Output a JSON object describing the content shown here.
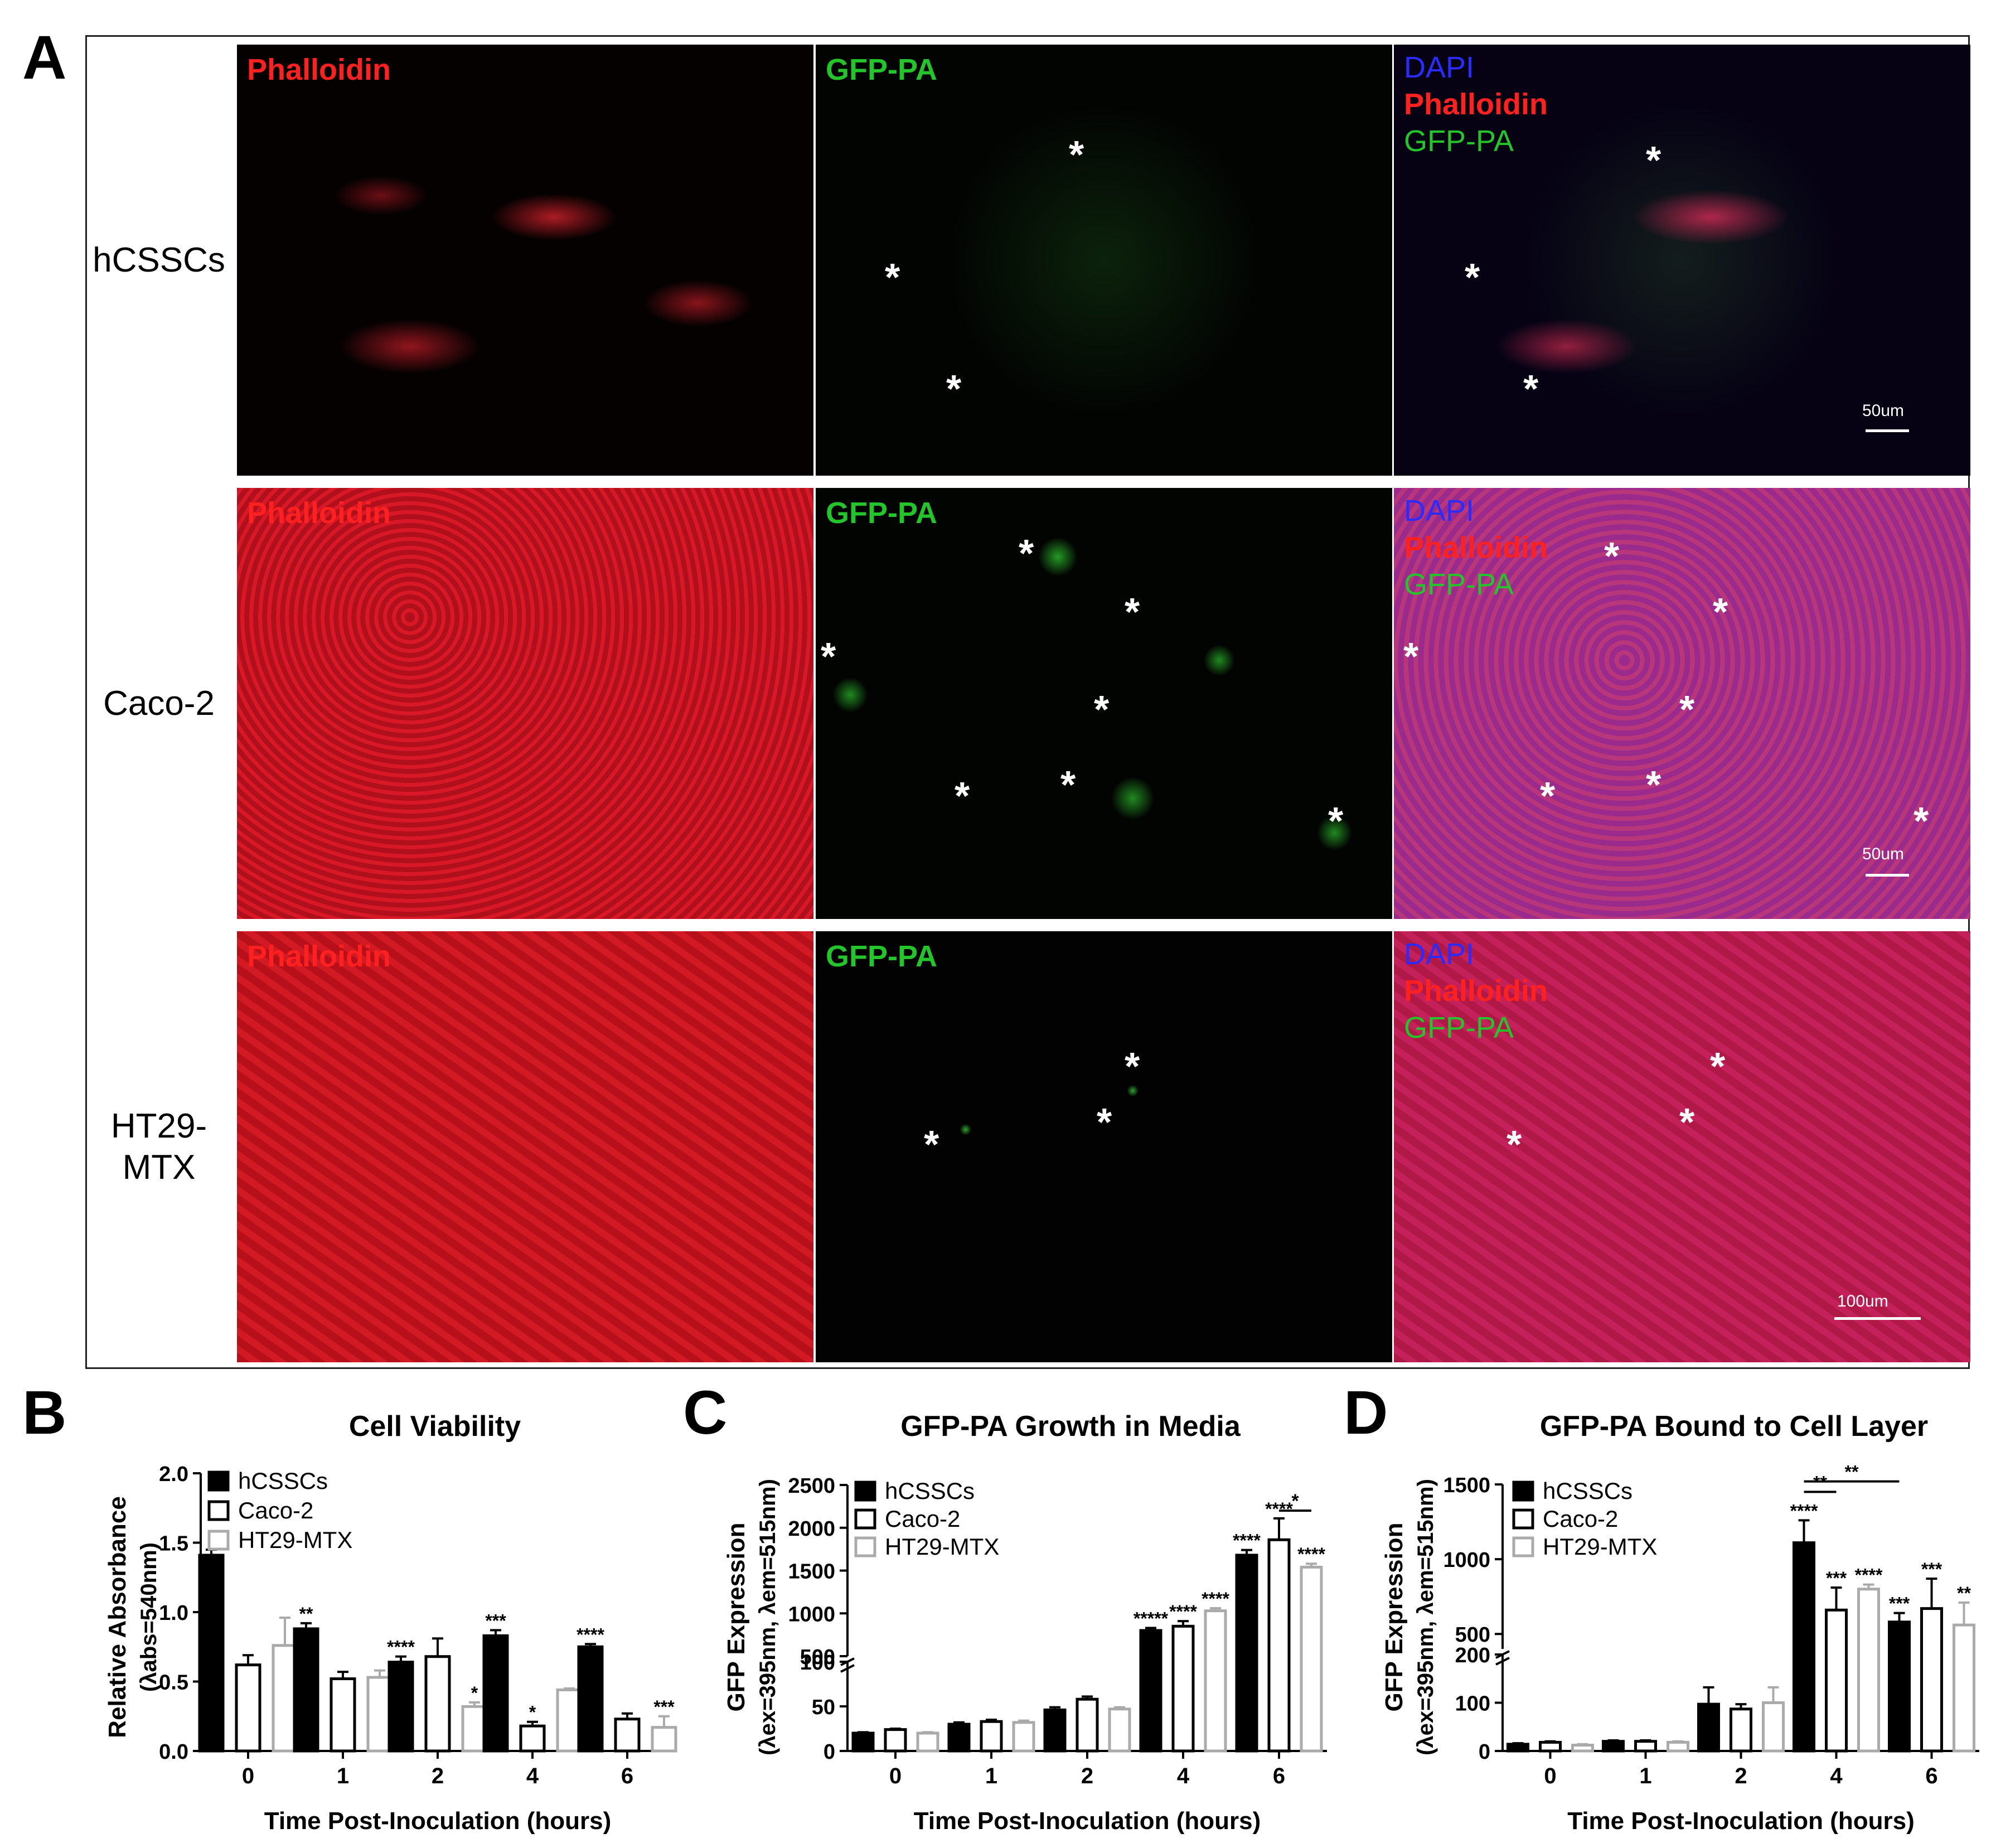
{
  "figure": {
    "panel_letters": {
      "a": "A",
      "b": "B",
      "c": "C",
      "d": "D"
    },
    "rows": [
      {
        "label_lines": [
          "hCSSCs"
        ],
        "scale_bar": "50um",
        "stain": "sparse"
      },
      {
        "label_lines": [
          "Caco-2"
        ],
        "scale_bar": "50um",
        "stain": "dense"
      },
      {
        "label_lines": [
          "HT29-",
          "MTX"
        ],
        "scale_bar": "100um",
        "stain": "fibrous"
      }
    ],
    "channel_labels": {
      "phalloidin": "Phalloidin",
      "gfp": "GFP-PA",
      "dapi": "DAPI"
    },
    "asterisk": "*",
    "colors": {
      "phalloidin": "#ff2020",
      "gfp": "#24c52b",
      "dapi": "#2b2bff"
    }
  },
  "legend": {
    "series": [
      "hCSSCs",
      "Caco-2",
      "HT29-MTX"
    ]
  },
  "chart_data": [
    {
      "id": "B",
      "type": "bar",
      "title": "Cell Viability",
      "xlabel": "Time Post-Inoculation (hours)",
      "ylabel_main": "Relative  Absorbance",
      "ylabel_sub": "(λabs=540nm)",
      "categories": [
        "0",
        "1",
        "2",
        "4",
        "6"
      ],
      "ylim": [
        0,
        2.0
      ],
      "yticks": [
        "0.0",
        "0.5",
        "1.0",
        "1.5",
        "2.0"
      ],
      "series": [
        {
          "name": "hCSSCs",
          "values": [
            1.41,
            0.88,
            0.64,
            0.83,
            0.75
          ],
          "errors": [
            0.04,
            0.04,
            0.04,
            0.04,
            0.02
          ],
          "sig": [
            "",
            "**",
            "****",
            "***",
            "****"
          ]
        },
        {
          "name": "Caco-2",
          "values": [
            0.62,
            0.52,
            0.68,
            0.18,
            0.23
          ],
          "errors": [
            0.07,
            0.05,
            0.13,
            0.03,
            0.04
          ],
          "sig": [
            "",
            "",
            "",
            "*",
            ""
          ]
        },
        {
          "name": "HT29-MTX",
          "values": [
            0.76,
            0.53,
            0.32,
            0.44,
            0.17
          ],
          "errors": [
            0.2,
            0.05,
            0.03,
            0.01,
            0.08
          ],
          "sig": [
            "",
            "",
            "*",
            "",
            "***"
          ]
        }
      ]
    },
    {
      "id": "C",
      "type": "bar",
      "title": "GFP-PA Growth in Media",
      "xlabel": "Time Post-Inoculation (hours)",
      "ylabel_main": "GFP Expression",
      "ylabel_sub": "(λex=395nm, λem=515nm)",
      "categories": [
        "0",
        "1",
        "2",
        "4",
        "6"
      ],
      "broken_axis": {
        "lower": [
          0,
          100
        ],
        "upper": [
          500,
          2500
        ]
      },
      "yticks_lower": [
        "0",
        "50",
        "100"
      ],
      "yticks_upper": [
        "500",
        "1000",
        "1500",
        "2000",
        "2500"
      ],
      "series": [
        {
          "name": "hCSSCs",
          "values": [
            20,
            30,
            46,
            800,
            1680
          ],
          "errors": [
            1,
            2,
            3,
            30,
            60
          ],
          "sig": [
            "",
            "",
            "",
            "*****",
            "****"
          ]
        },
        {
          "name": "Caco-2",
          "values": [
            24,
            33,
            58,
            850,
            1860
          ],
          "errors": [
            1,
            2,
            3,
            60,
            250
          ],
          "sig": [
            "",
            "",
            "",
            "****",
            "****"
          ]
        },
        {
          "name": "HT29-MTX",
          "values": [
            20,
            32,
            47,
            1030,
            1540
          ],
          "errors": [
            1,
            2,
            2,
            30,
            40
          ],
          "sig": [
            "",
            "",
            "",
            "****",
            "****"
          ]
        }
      ],
      "bracket": {
        "label": "*"
      }
    },
    {
      "id": "D",
      "type": "bar",
      "title": "GFP-PA Bound to Cell  Layer",
      "xlabel": "Time Post-Inoculation (hours)",
      "ylabel_main": "GFP Expression",
      "ylabel_sub": "(λex=395nm, λem=515nm)",
      "categories": [
        "0",
        "1",
        "2",
        "4",
        "6"
      ],
      "broken_axis": {
        "lower": [
          0,
          200
        ],
        "upper": [
          400,
          1500
        ]
      },
      "yticks_lower": [
        "0",
        "100",
        "200"
      ],
      "yticks_upper": [
        "500",
        "1000",
        "1500"
      ],
      "series": [
        {
          "name": "hCSSCs",
          "values": [
            14,
            20,
            97,
            1110,
            580
          ],
          "errors": [
            2,
            2,
            35,
            150,
            60
          ],
          "sig": [
            "",
            "",
            "",
            "****",
            "***"
          ]
        },
        {
          "name": "Caco-2",
          "values": [
            18,
            20,
            87,
            660,
            670
          ],
          "errors": [
            2,
            2,
            10,
            150,
            200
          ],
          "sig": [
            "",
            "",
            "",
            "***",
            "***"
          ]
        },
        {
          "name": "HT29-MTX",
          "values": [
            12,
            18,
            100,
            800,
            560
          ],
          "errors": [
            2,
            2,
            32,
            30,
            150
          ],
          "sig": [
            "",
            "",
            "",
            "****",
            "**"
          ]
        }
      ],
      "brackets": [
        {
          "label": "**"
        },
        {
          "label": "**"
        }
      ]
    }
  ]
}
